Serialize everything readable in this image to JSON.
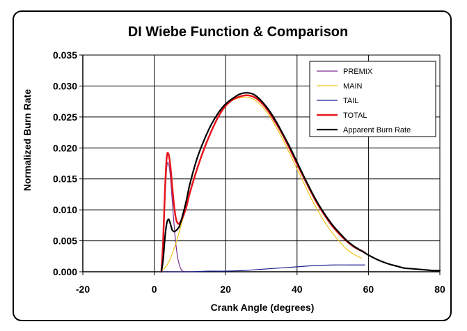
{
  "chart_data": {
    "type": "line",
    "title": "DI Wiebe Function & Comparison",
    "xlabel": "Crank Angle (degrees)",
    "ylabel": "Normalized Burn Rate",
    "xlim": [
      -20,
      80
    ],
    "ylim": [
      0,
      0.035
    ],
    "x_ticks": [
      "-20",
      "0",
      "20",
      "40",
      "60",
      "80"
    ],
    "y_ticks": [
      "0.000",
      "0.005",
      "0.010",
      "0.015",
      "0.020",
      "0.025",
      "0.030",
      "0.035"
    ],
    "grid": true,
    "legend_position": "top-right",
    "series": [
      {
        "name": "PREMIX",
        "color": "#7b2c8f",
        "width": 1.2,
        "points": [
          [
            2,
            0
          ],
          [
            2.5,
            0.004
          ],
          [
            3,
            0.0115
          ],
          [
            3.5,
            0.0168
          ],
          [
            4,
            0.0175
          ],
          [
            4.5,
            0.0155
          ],
          [
            5,
            0.0118
          ],
          [
            5.5,
            0.008
          ],
          [
            6,
            0.0048
          ],
          [
            6.5,
            0.0025
          ],
          [
            7,
            0.0012
          ],
          [
            7.5,
            0.0004
          ],
          [
            8,
            0.0001
          ],
          [
            9,
            0
          ]
        ]
      },
      {
        "name": "MAIN",
        "color": "#f0c419",
        "width": 1.2,
        "points": [
          [
            2,
            0
          ],
          [
            4,
            0.0015
          ],
          [
            6,
            0.0045
          ],
          [
            8,
            0.0085
          ],
          [
            10,
            0.0128
          ],
          [
            12,
            0.0165
          ],
          [
            14,
            0.0198
          ],
          [
            16,
            0.0226
          ],
          [
            18,
            0.025
          ],
          [
            20,
            0.0267
          ],
          [
            22,
            0.0277
          ],
          [
            24,
            0.0281
          ],
          [
            26,
            0.0282
          ],
          [
            28,
            0.0278
          ],
          [
            30,
            0.0268
          ],
          [
            32,
            0.0254
          ],
          [
            34,
            0.0235
          ],
          [
            36,
            0.0214
          ],
          [
            38,
            0.019
          ],
          [
            40,
            0.0166
          ],
          [
            42,
            0.0142
          ],
          [
            44,
            0.0118
          ],
          [
            46,
            0.0097
          ],
          [
            48,
            0.0078
          ],
          [
            50,
            0.0062
          ],
          [
            52,
            0.0048
          ],
          [
            54,
            0.0036
          ],
          [
            56,
            0.0028
          ],
          [
            58,
            0.0022
          ]
        ]
      },
      {
        "name": "TAIL",
        "color": "#1f1f8f",
        "width": 1.2,
        "points": [
          [
            2,
            0
          ],
          [
            10,
            0
          ],
          [
            15,
            0.0001
          ],
          [
            20,
            0.0001
          ],
          [
            25,
            0.0002
          ],
          [
            30,
            0.0004
          ],
          [
            35,
            0.0006
          ],
          [
            40,
            0.0008
          ],
          [
            45,
            0.001
          ],
          [
            50,
            0.0011
          ],
          [
            55,
            0.0011
          ],
          [
            59,
            0.0011
          ]
        ]
      },
      {
        "name": "TOTAL",
        "color": "#e8141c",
        "width": 2.5,
        "points": [
          [
            2,
            0
          ],
          [
            2.5,
            0.005
          ],
          [
            3,
            0.013
          ],
          [
            3.5,
            0.0185
          ],
          [
            4,
            0.019
          ],
          [
            4.5,
            0.0172
          ],
          [
            5,
            0.014
          ],
          [
            5.5,
            0.011
          ],
          [
            6,
            0.0088
          ],
          [
            6.5,
            0.0079
          ],
          [
            7,
            0.0078
          ],
          [
            8,
            0.0088
          ],
          [
            9,
            0.0105
          ],
          [
            10,
            0.0128
          ],
          [
            12,
            0.0166
          ],
          [
            14,
            0.0199
          ],
          [
            16,
            0.0227
          ],
          [
            18,
            0.0251
          ],
          [
            20,
            0.0268
          ],
          [
            22,
            0.0278
          ],
          [
            24,
            0.0283
          ],
          [
            26,
            0.0285
          ],
          [
            28,
            0.0282
          ],
          [
            30,
            0.0273
          ],
          [
            32,
            0.0259
          ],
          [
            34,
            0.0241
          ],
          [
            36,
            0.0221
          ],
          [
            38,
            0.0198
          ],
          [
            40,
            0.0174
          ],
          [
            42,
            0.0151
          ],
          [
            44,
            0.0128
          ],
          [
            46,
            0.0107
          ],
          [
            48,
            0.0089
          ],
          [
            50,
            0.0073
          ],
          [
            52,
            0.006
          ],
          [
            54,
            0.0049
          ],
          [
            56,
            0.004
          ],
          [
            58,
            0.0034
          ],
          [
            59,
            0.0031
          ]
        ]
      },
      {
        "name": "Apparent Burn Rate",
        "color": "#000000",
        "width": 2.2,
        "points": [
          [
            2,
            0
          ],
          [
            2.5,
            0.002
          ],
          [
            3,
            0.0055
          ],
          [
            3.5,
            0.0078
          ],
          [
            4,
            0.0085
          ],
          [
            4.5,
            0.0078
          ],
          [
            5,
            0.0068
          ],
          [
            5.5,
            0.0065
          ],
          [
            6,
            0.0066
          ],
          [
            7,
            0.0073
          ],
          [
            8,
            0.0092
          ],
          [
            9,
            0.0115
          ],
          [
            10,
            0.0142
          ],
          [
            12,
            0.0183
          ],
          [
            14,
            0.0213
          ],
          [
            16,
            0.0238
          ],
          [
            18,
            0.0257
          ],
          [
            20,
            0.0271
          ],
          [
            22,
            0.028
          ],
          [
            24,
            0.0287
          ],
          [
            26,
            0.0289
          ],
          [
            28,
            0.0286
          ],
          [
            30,
            0.0276
          ],
          [
            32,
            0.0262
          ],
          [
            34,
            0.0244
          ],
          [
            36,
            0.0223
          ],
          [
            38,
            0.0201
          ],
          [
            40,
            0.0177
          ],
          [
            42,
            0.0153
          ],
          [
            44,
            0.013
          ],
          [
            46,
            0.0109
          ],
          [
            48,
            0.0091
          ],
          [
            50,
            0.0075
          ],
          [
            52,
            0.0062
          ],
          [
            54,
            0.005
          ],
          [
            56,
            0.0041
          ],
          [
            58,
            0.0034
          ],
          [
            60,
            0.0027
          ],
          [
            62,
            0.0021
          ],
          [
            64,
            0.0016
          ],
          [
            66,
            0.0012
          ],
          [
            68,
            0.0009
          ],
          [
            70,
            0.0006
          ],
          [
            72,
            0.0005
          ],
          [
            74,
            0.0004
          ],
          [
            76,
            0.0003
          ],
          [
            78,
            0.0002
          ],
          [
            80,
            0.0002
          ]
        ]
      }
    ]
  }
}
